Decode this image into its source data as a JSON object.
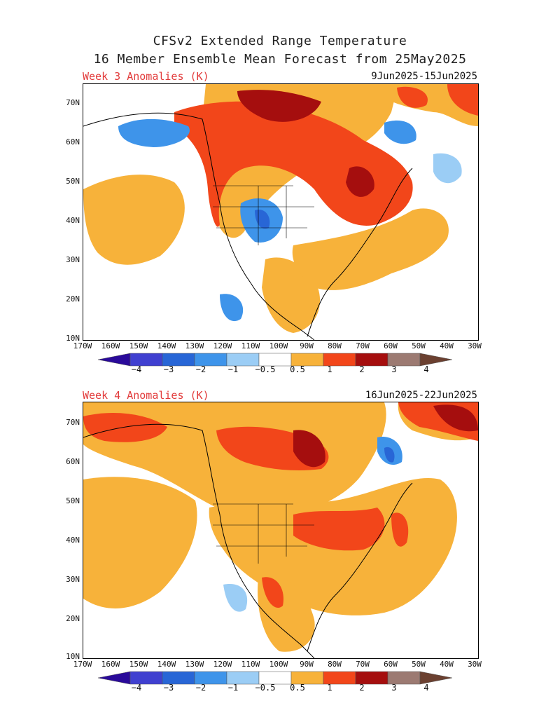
{
  "title": {
    "line1": "CFSv2 Extended Range Temperature",
    "line2": "16 Member Ensemble Mean Forecast from 25May2025"
  },
  "panels": [
    {
      "label": "Week 3 Anomalies (K)",
      "dates": "9Jun2025-15Jun2025"
    },
    {
      "label": "Week 4 Anomalies (K)",
      "dates": "16Jun2025-22Jun2025"
    }
  ],
  "lat_labels": [
    "70N",
    "60N",
    "50N",
    "40N",
    "30N",
    "20N",
    "10N"
  ],
  "lon_labels": [
    "170W",
    "160W",
    "150W",
    "140W",
    "130W",
    "120W",
    "110W",
    "100W",
    "90W",
    "80W",
    "70W",
    "60W",
    "50W",
    "40W",
    "30W"
  ],
  "colorbar": {
    "labels": [
      "−4",
      "−3",
      "−2",
      "−1",
      "−0.5",
      "0.5",
      "1",
      "2",
      "3",
      "4"
    ],
    "colors": [
      "#2a0a9a",
      "#4040d0",
      "#2866d6",
      "#3e94ea",
      "#9bcdf5",
      "#ffffff",
      "#f7b23a",
      "#f2461a",
      "#a50e0e",
      "#9c7a72",
      "#6b4030"
    ]
  }
}
